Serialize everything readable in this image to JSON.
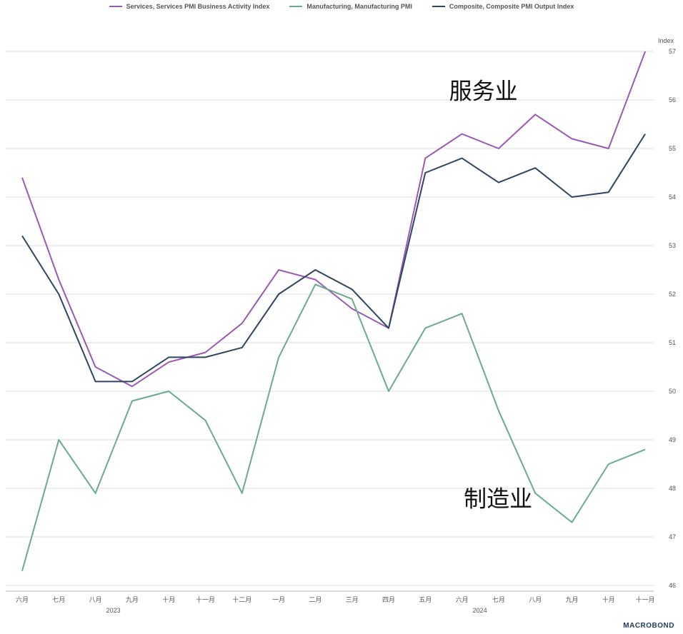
{
  "legend": [
    {
      "label": "Services, Services PMI Business Activity Index",
      "color": "#9b59b6"
    },
    {
      "label": "Manufacturing, Manufacturing PMI",
      "color": "#6aaa8e"
    },
    {
      "label": "Composite, Composite PMI Output Index",
      "color": "#2e4563"
    }
  ],
  "logo": "MACROBOND",
  "chart_data": {
    "type": "line",
    "y_axis_label": "Index",
    "ylim": [
      46,
      57
    ],
    "yticks": [
      46,
      47,
      48,
      49,
      50,
      51,
      52,
      53,
      54,
      55,
      56,
      57
    ],
    "grid": true,
    "legend_position": "top",
    "categories": [
      "六月",
      "七月",
      "八月",
      "九月",
      "十月",
      "十一月",
      "十二月",
      "一月",
      "二月",
      "三月",
      "四月",
      "五月",
      "六月",
      "七月",
      "八月",
      "九月",
      "十月",
      "十一月"
    ],
    "years": [
      {
        "label": "2023",
        "category_index": 2
      },
      {
        "label": "2024",
        "category_index": 12
      }
    ],
    "series": [
      {
        "name": "Services, Services PMI Business Activity Index",
        "color": "#9b59b6",
        "values": [
          54.4,
          52.3,
          50.5,
          50.1,
          50.6,
          50.8,
          51.4,
          52.5,
          52.3,
          51.7,
          51.3,
          54.8,
          55.3,
          55.0,
          55.7,
          55.2,
          55.0,
          57.0
        ]
      },
      {
        "name": "Manufacturing, Manufacturing PMI",
        "color": "#6aaa8e",
        "values": [
          46.3,
          49.0,
          47.9,
          49.8,
          50.0,
          49.4,
          47.9,
          50.7,
          52.2,
          51.9,
          50.0,
          51.3,
          51.6,
          49.6,
          47.9,
          47.3,
          48.5,
          48.8
        ]
      },
      {
        "name": "Composite, Composite PMI Output Index",
        "color": "#2e4563",
        "values": [
          53.2,
          52.0,
          50.2,
          50.2,
          50.7,
          50.7,
          50.9,
          52.0,
          52.5,
          52.1,
          51.3,
          54.5,
          54.8,
          54.3,
          54.6,
          54.0,
          54.1,
          55.3
        ]
      }
    ],
    "annotations": [
      {
        "text": "服务业",
        "x_index": 12,
        "y": 56.2
      },
      {
        "text": "制造业",
        "x_index": 12.4,
        "y": 47.8
      }
    ]
  }
}
